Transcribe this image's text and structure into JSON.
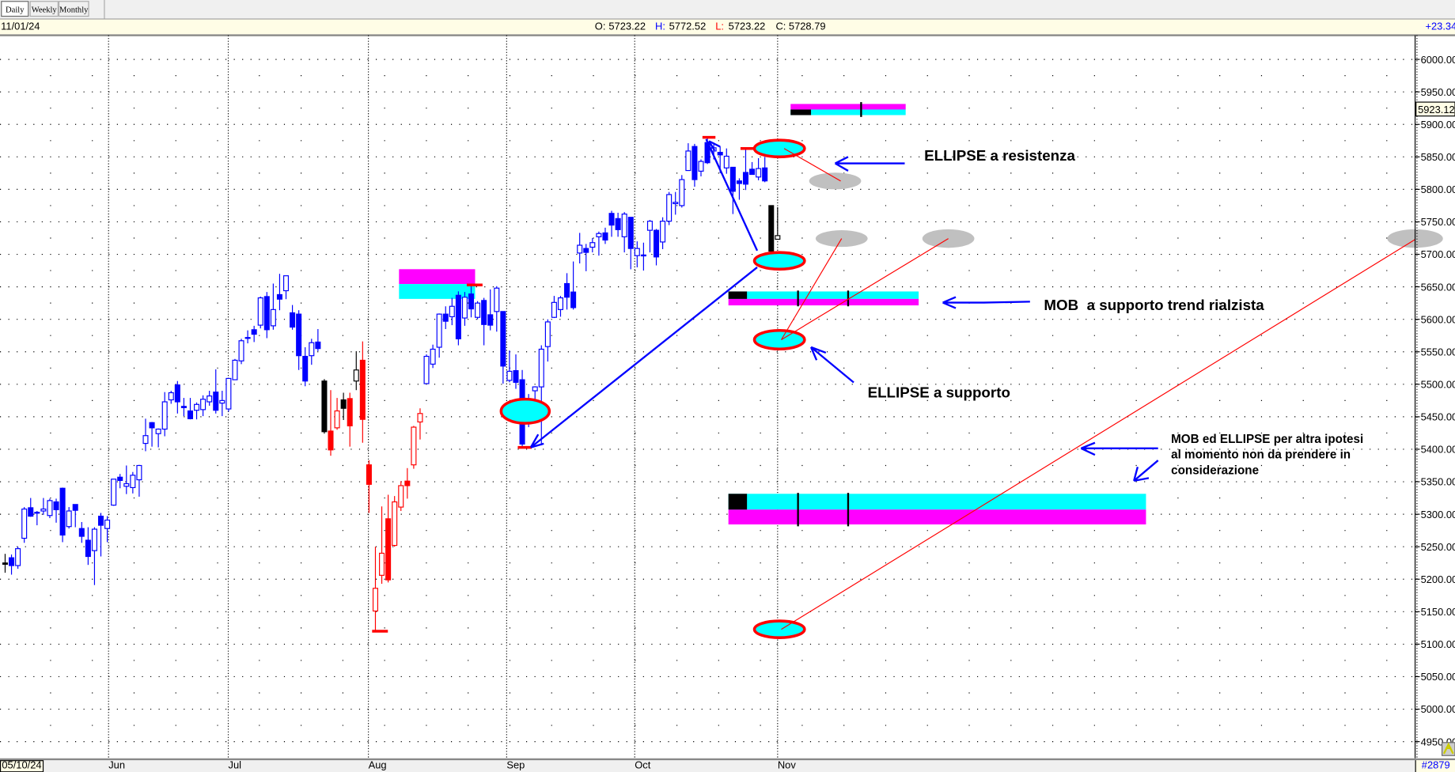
{
  "toolbar": {
    "buttons": [
      {
        "label": "Daily",
        "active": true
      },
      {
        "label": "Weekly"
      },
      {
        "label": "Monthly"
      }
    ]
  },
  "infobar": {
    "date": "11/01/24",
    "o_label": "O:",
    "o": "5723.22",
    "h_label": "H:",
    "h": "5772.52",
    "l_label": "L:",
    "l": "5723.22",
    "c_label": "C:",
    "c": "5728.79",
    "change": "+23.34"
  },
  "price_axis": {
    "labels": [
      "6000.00",
      "5950.00",
      "5900.00",
      "5850.00",
      "5800.00",
      "5750.00",
      "5700.00",
      "5650.00",
      "5600.00",
      "5550.00",
      "5500.00",
      "5450.00",
      "5400.00",
      "5350.00",
      "5300.00",
      "5250.00",
      "5200.00",
      "5150.00",
      "5100.00",
      "5050.00",
      "5000.00",
      "4950.00"
    ],
    "current_price_box": "5923.12"
  },
  "time_axis": {
    "start": "05/10/24",
    "months": [
      "Jun",
      "Jul",
      "Aug",
      "Sep",
      "Oct",
      "Nov"
    ],
    "bar_count": "#2879"
  },
  "annotations": {
    "resistance": "ELLIPSE a resistenza",
    "mob_support": "MOB  a supporto trend rialzista",
    "ellipse_support": "ELLIPSE a supporto",
    "alt_lines": [
      "MOB ed ELLIPSE per altra ipotesi",
      "al momento non da prendere in",
      "considerazione"
    ]
  },
  "colors": {
    "b": "#0000ff",
    "k": "#000000",
    "r": "#ff0000",
    "cyan": "#00ffff",
    "magenta": "#ff00ff",
    "ellipse_stroke": "#ff0000",
    "ghost_ellipse": "#c0c0c0",
    "arrow": "#0000ff"
  },
  "chart_data": {
    "type": "candlestick",
    "ylim": [
      4950,
      6000
    ],
    "grid": true,
    "candles": [
      [
        "05/10",
        5225,
        5239,
        5210,
        5223,
        "k"
      ],
      [
        "05/13",
        5233,
        5238,
        5207,
        5221,
        "b"
      ],
      [
        "05/14",
        5221,
        5250,
        5216,
        5247,
        "b"
      ],
      [
        "05/15",
        5263,
        5311,
        5256,
        5308,
        "b"
      ],
      [
        "05/16",
        5310,
        5325,
        5296,
        5297,
        "b"
      ],
      [
        "05/17",
        5303,
        5305,
        5283,
        5303,
        "b"
      ],
      [
        "05/20",
        5305,
        5325,
        5299,
        5308,
        "b"
      ],
      [
        "05/21",
        5298,
        5324,
        5294,
        5321,
        "b"
      ],
      [
        "05/22",
        5319,
        5324,
        5287,
        5307,
        "b"
      ],
      [
        "05/23",
        5340,
        5341,
        5257,
        5268,
        "b"
      ],
      [
        "05/24",
        5281,
        5311,
        5278,
        5305,
        "b"
      ],
      [
        "05/28",
        5315,
        5315,
        5280,
        5306,
        "b"
      ],
      [
        "05/29",
        5278,
        5288,
        5256,
        5266,
        "b"
      ],
      [
        "05/30",
        5260,
        5280,
        5222,
        5235,
        "b"
      ],
      [
        "05/31",
        5244,
        5280,
        5191,
        5277,
        "b"
      ],
      [
        "06/03",
        5297,
        5302,
        5235,
        5283,
        "b"
      ],
      [
        "06/04",
        5278,
        5297,
        5257,
        5291,
        "b"
      ],
      [
        "06/05",
        5314,
        5354,
        5313,
        5354,
        "b"
      ],
      [
        "06/06",
        5357,
        5362,
        5340,
        5352,
        "b"
      ],
      [
        "06/07",
        5343,
        5375,
        5331,
        5347,
        "b"
      ],
      [
        "06/10",
        5341,
        5365,
        5332,
        5360,
        "b"
      ],
      [
        "06/11",
        5353,
        5376,
        5327,
        5375,
        "b"
      ],
      [
        "06/12",
        5409,
        5447,
        5397,
        5421,
        "b"
      ],
      [
        "06/13",
        5441,
        5442,
        5404,
        5433,
        "b"
      ],
      [
        "06/14",
        5424,
        5432,
        5403,
        5431,
        "b"
      ],
      [
        "06/17",
        5431,
        5488,
        5420,
        5473,
        "b"
      ],
      [
        "06/18",
        5476,
        5490,
        5470,
        5487,
        "b"
      ],
      [
        "06/20",
        5499,
        5505,
        5455,
        5473,
        "b"
      ],
      [
        "06/21",
        5466,
        5479,
        5451,
        5464,
        "b"
      ],
      [
        "06/24",
        5459,
        5479,
        5446,
        5447,
        "b"
      ],
      [
        "06/25",
        5460,
        5472,
        5446,
        5469,
        "b"
      ],
      [
        "06/26",
        5461,
        5483,
        5451,
        5477,
        "b"
      ],
      [
        "06/27",
        5473,
        5490,
        5467,
        5482,
        "b"
      ],
      [
        "06/28",
        5488,
        5523,
        5455,
        5460,
        "b"
      ],
      [
        "07/01",
        5471,
        5490,
        5451,
        5475,
        "b"
      ],
      [
        "07/02",
        5462,
        5509,
        5458,
        5509,
        "b"
      ],
      [
        "07/03",
        5507,
        5539,
        5507,
        5537,
        "b"
      ],
      [
        "07/05",
        5536,
        5570,
        5531,
        5567,
        "b"
      ],
      [
        "07/08",
        5572,
        5583,
        5563,
        5572,
        "b"
      ],
      [
        "07/09",
        5584,
        5590,
        5565,
        5577,
        "b"
      ],
      [
        "07/10",
        5591,
        5635,
        5586,
        5633,
        "b"
      ],
      [
        "07/11",
        5635,
        5642,
        5571,
        5584,
        "b"
      ],
      [
        "07/12",
        5590,
        5655,
        5584,
        5615,
        "b"
      ],
      [
        "07/15",
        5638,
        5670,
        5614,
        5631,
        "b"
      ],
      [
        "07/16",
        5644,
        5667,
        5631,
        5667,
        "b"
      ],
      [
        "07/17",
        5610,
        5622,
        5584,
        5588,
        "b"
      ],
      [
        "07/18",
        5608,
        5614,
        5522,
        5544,
        "b"
      ],
      [
        "07/19",
        5543,
        5557,
        5497,
        5505,
        "b"
      ],
      [
        "07/22",
        5544,
        5570,
        5530,
        5564,
        "b"
      ],
      [
        "07/23",
        5565,
        5585,
        5551,
        5555,
        "b"
      ],
      [
        "07/24",
        5505,
        5508,
        5424,
        5427,
        "k"
      ],
      [
        "07/25",
        5428,
        5491,
        5390,
        5399,
        "r"
      ],
      [
        "07/26",
        5433,
        5479,
        5430,
        5459,
        "r"
      ],
      [
        "07/29",
        5476,
        5487,
        5445,
        5463,
        "k"
      ],
      [
        "07/30",
        5478,
        5487,
        5404,
        5436,
        "r"
      ],
      [
        "07/31",
        5505,
        5551,
        5491,
        5522,
        "k"
      ],
      [
        "08/01",
        5537,
        5566,
        5410,
        5446,
        "r"
      ],
      [
        "08/02",
        5376,
        5383,
        5302,
        5346,
        "r"
      ],
      [
        "08/05",
        5151,
        5250,
        5119,
        5186,
        "r"
      ],
      [
        "08/06",
        5206,
        5312,
        5193,
        5240,
        "r"
      ],
      [
        "08/07",
        5293,
        5330,
        5195,
        5199,
        "r"
      ],
      [
        "08/08",
        5252,
        5328,
        5250,
        5319,
        "r"
      ],
      [
        "08/09",
        5311,
        5351,
        5305,
        5344,
        "r"
      ],
      [
        "08/12",
        5351,
        5371,
        5324,
        5344,
        "r"
      ],
      [
        "08/13",
        5376,
        5436,
        5370,
        5434,
        "r"
      ],
      [
        "08/14",
        5442,
        5463,
        5415,
        5455,
        "r"
      ],
      [
        "08/15",
        5501,
        5546,
        5501,
        5543,
        "b"
      ],
      [
        "08/16",
        5531,
        5561,
        5525,
        5554,
        "b"
      ],
      [
        "08/19",
        5557,
        5609,
        5541,
        5608,
        "b"
      ],
      [
        "08/20",
        5608,
        5620,
        5585,
        5597,
        "b"
      ],
      [
        "08/21",
        5604,
        5633,
        5591,
        5620,
        "b"
      ],
      [
        "08/22",
        5637,
        5643,
        5560,
        5570,
        "b"
      ],
      [
        "08/23",
        5602,
        5642,
        5590,
        5634,
        "b"
      ],
      [
        "08/26",
        5639,
        5651,
        5603,
        5616,
        "b"
      ],
      [
        "08/27",
        5603,
        5628,
        5600,
        5625,
        "b"
      ],
      [
        "08/28",
        5629,
        5633,
        5560,
        5592,
        "b"
      ],
      [
        "08/29",
        5607,
        5646,
        5583,
        5591,
        "b"
      ],
      [
        "08/30",
        5612,
        5651,
        5581,
        5648,
        "b"
      ],
      [
        "09/03",
        5612,
        5612,
        5501,
        5528,
        "b"
      ],
      [
        "09/04",
        5506,
        5552,
        5503,
        5520,
        "b"
      ],
      [
        "09/05",
        5521,
        5546,
        5493,
        5503,
        "b"
      ],
      [
        "09/06",
        5507,
        5522,
        5402,
        5408,
        "b"
      ],
      [
        "09/09",
        5442,
        5485,
        5434,
        5471,
        "b"
      ],
      [
        "09/10",
        5490,
        5497,
        5441,
        5496,
        "b"
      ],
      [
        "09/11",
        5496,
        5560,
        5406,
        5554,
        "b"
      ],
      [
        "09/12",
        5558,
        5600,
        5535,
        5596,
        "b"
      ],
      [
        "09/13",
        5603,
        5636,
        5602,
        5626,
        "b"
      ],
      [
        "09/16",
        5615,
        5636,
        5604,
        5633,
        "b"
      ],
      [
        "09/17",
        5655,
        5671,
        5615,
        5634,
        "b"
      ],
      [
        "09/18",
        5642,
        5689,
        5615,
        5618,
        "b"
      ],
      [
        "09/19",
        5702,
        5733,
        5686,
        5714,
        "b"
      ],
      [
        "09/20",
        5709,
        5716,
        5674,
        5703,
        "b"
      ],
      [
        "09/23",
        5711,
        5725,
        5703,
        5718,
        "b"
      ],
      [
        "09/24",
        5727,
        5735,
        5698,
        5732,
        "b"
      ],
      [
        "09/25",
        5733,
        5741,
        5716,
        5722,
        "b"
      ],
      [
        "09/26",
        5763,
        5767,
        5727,
        5745,
        "b"
      ],
      [
        "09/27",
        5755,
        5764,
        5727,
        5738,
        "b"
      ],
      [
        "09/30",
        5727,
        5765,
        5703,
        5762,
        "b"
      ],
      [
        "10/01",
        5757,
        5757,
        5677,
        5709,
        "b"
      ],
      [
        "10/02",
        5698,
        5720,
        5680,
        5709,
        "b"
      ],
      [
        "10/03",
        5698,
        5718,
        5675,
        5699,
        "b"
      ],
      [
        "10/04",
        5737,
        5753,
        5703,
        5751,
        "b"
      ],
      [
        "10/07",
        5737,
        5739,
        5683,
        5696,
        "b"
      ],
      [
        "10/08",
        5719,
        5757,
        5708,
        5751,
        "b"
      ],
      [
        "10/09",
        5751,
        5796,
        5745,
        5792,
        "b"
      ],
      [
        "10/10",
        5778,
        5796,
        5761,
        5780,
        "b"
      ],
      [
        "10/11",
        5775,
        5822,
        5772,
        5815,
        "b"
      ],
      [
        "10/14",
        5829,
        5871,
        5829,
        5859,
        "b"
      ],
      [
        "10/15",
        5866,
        5870,
        5804,
        5815,
        "b"
      ],
      [
        "10/16",
        5828,
        5846,
        5820,
        5843,
        "b"
      ],
      [
        "10/17",
        5872,
        5879,
        5839,
        5841,
        "b"
      ],
      [
        "10/18",
        5859,
        5872,
        5846,
        5864,
        "b"
      ],
      [
        "10/21",
        5857,
        5866,
        5825,
        5853,
        "b"
      ],
      [
        "10/22",
        5833,
        5863,
        5824,
        5851,
        "b"
      ],
      [
        "10/23",
        5834,
        5834,
        5762,
        5797,
        "b"
      ],
      [
        "10/24",
        5813,
        5817,
        5784,
        5809,
        "b"
      ],
      [
        "10/25",
        5826,
        5862,
        5799,
        5808,
        "b"
      ],
      [
        "10/28",
        5831,
        5842,
        5823,
        5823,
        "b"
      ],
      [
        "10/29",
        5819,
        5848,
        5814,
        5832,
        "b"
      ],
      [
        "10/30",
        5833,
        5850,
        5811,
        5813,
        "b"
      ],
      [
        "10/31",
        5775,
        5775,
        5703,
        5705,
        "k"
      ],
      [
        "11/01",
        5723.22,
        5772.52,
        5723.22,
        5728.79,
        "k"
      ]
    ]
  }
}
